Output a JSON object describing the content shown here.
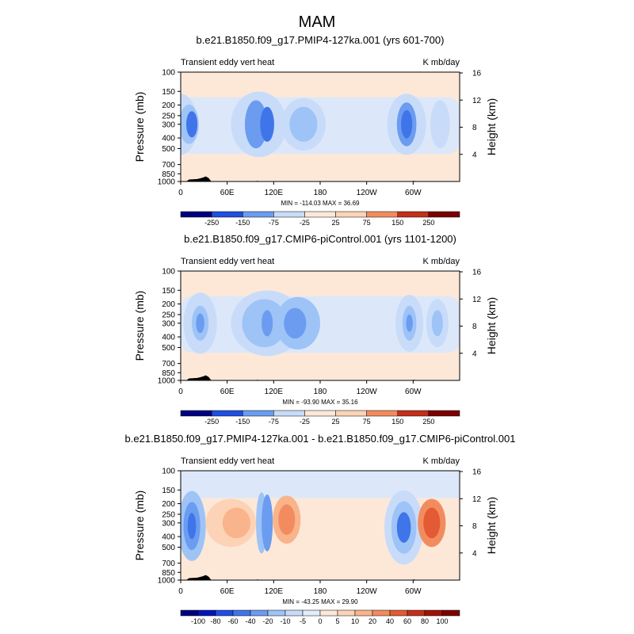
{
  "figure_title": "MAM",
  "chart_data": [
    {
      "type": "heatmap",
      "title": "b.e21.B1850.f09_g17.PMIP4-127ka.001 (yrs 601-700)",
      "left_label": "Transient eddy vert heat",
      "right_label": "K mb/day",
      "ylabel": "Pressure (mb)",
      "ylabel_right": "Height (km)",
      "x_ticks": [
        "0",
        "60E",
        "120E",
        "180",
        "120W",
        "60W"
      ],
      "y_ticks": [
        "100",
        "150",
        "200",
        "250",
        "300",
        "400",
        "500",
        "700",
        "850",
        "1000"
      ],
      "y_ticks_right": [
        "16",
        "12",
        "8",
        "4"
      ],
      "stats": "MIN = -114.03  MAX =  36.69",
      "colorbar_labels": [
        "-250",
        "-150",
        "-75",
        "-25",
        "25",
        "75",
        "150",
        "250"
      ]
    },
    {
      "type": "heatmap",
      "title": "b.e21.B1850.f09_g17.CMIP6-piControl.001 (yrs 1101-1200)",
      "left_label": "Transient eddy vert heat",
      "right_label": "K mb/day",
      "ylabel": "Pressure (mb)",
      "ylabel_right": "Height (km)",
      "x_ticks": [
        "0",
        "60E",
        "120E",
        "180",
        "120W",
        "60W"
      ],
      "y_ticks": [
        "100",
        "150",
        "200",
        "250",
        "300",
        "400",
        "500",
        "700",
        "850",
        "1000"
      ],
      "y_ticks_right": [
        "16",
        "12",
        "8",
        "4"
      ],
      "stats": "MIN = -93.90  MAX =  35.16",
      "colorbar_labels": [
        "-250",
        "-150",
        "-75",
        "-25",
        "25",
        "75",
        "150",
        "250"
      ]
    },
    {
      "type": "heatmap",
      "title": "b.e21.B1850.f09_g17.PMIP4-127ka.001 - b.e21.B1850.f09_g17.CMIP6-piControl.001",
      "left_label": "Transient eddy vert heat",
      "right_label": "K mb/day",
      "ylabel": "Pressure (mb)",
      "ylabel_right": "Height (km)",
      "x_ticks": [
        "0",
        "60E",
        "120E",
        "180",
        "120W",
        "60W"
      ],
      "y_ticks": [
        "100",
        "150",
        "200",
        "250",
        "300",
        "400",
        "500",
        "700",
        "850",
        "1000"
      ],
      "y_ticks_right": [
        "16",
        "12",
        "8",
        "4"
      ],
      "stats": "MIN = -43.25  MAX =  29.90",
      "colorbar_labels": [
        "-100",
        "-80",
        "-60",
        "-40",
        "-20",
        "-10",
        "-5",
        "0",
        "5",
        "10",
        "20",
        "40",
        "60",
        "80",
        "100"
      ]
    }
  ],
  "colors": {
    "cbar_abs": [
      "#00007f",
      "#0014b8",
      "#1f4ee0",
      "#3f75e8",
      "#6b9cf0",
      "#9ec3f7",
      "#c8dcf9",
      "#e2ecfb",
      "#fde8d8",
      "#fcd3b6",
      "#f9b48c",
      "#f28c5e",
      "#e35a35",
      "#c42f1a",
      "#a01208",
      "#7b0000"
    ],
    "cbar_diff": [
      "#00007f",
      "#0014b8",
      "#1f4ee0",
      "#3f75e8",
      "#6b9cf0",
      "#9ec3f7",
      "#c8dcf9",
      "#e2ecfb",
      "#fde8d8",
      "#fcd3b6",
      "#f9b48c",
      "#f28c5e",
      "#e35a35",
      "#c42f1a",
      "#a01208",
      "#7b0000"
    ],
    "background_positive": "#fde8d8",
    "background_negative": "#dce8f9",
    "topography": "#000000"
  }
}
